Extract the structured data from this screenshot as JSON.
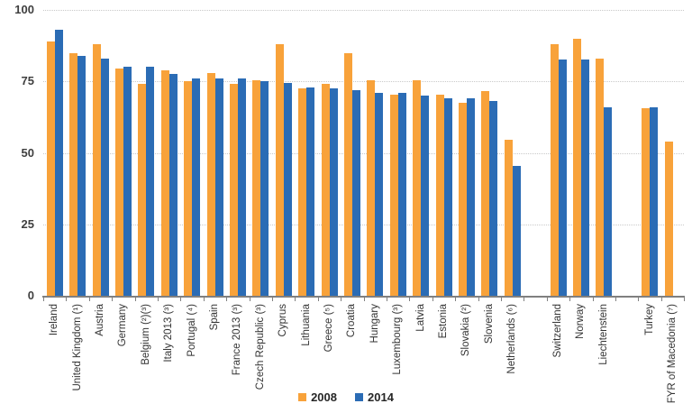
{
  "chart_data": {
    "type": "bar",
    "title": "",
    "xlabel": "",
    "ylabel": "",
    "ylim": [
      0,
      100
    ],
    "yticks": [
      0,
      25,
      50,
      75,
      100
    ],
    "grid": "horizontal-dotted",
    "legend_position": "bottom-center",
    "series": [
      {
        "name": "2008",
        "color": "#F8A23A"
      },
      {
        "name": "2014",
        "color": "#2B6CB5"
      }
    ],
    "categories": [
      {
        "label": "Ireland",
        "slot": 0,
        "values": [
          89,
          93
        ]
      },
      {
        "label": "United Kingdom (¹)",
        "slot": 1,
        "values": [
          85,
          84
        ]
      },
      {
        "label": "Austria",
        "slot": 2,
        "values": [
          88,
          83
        ]
      },
      {
        "label": "Germany",
        "slot": 3,
        "values": [
          79.5,
          80
        ]
      },
      {
        "label": "Belgium (²)(³)",
        "slot": 4,
        "values": [
          74,
          80
        ]
      },
      {
        "label": "Italy 2013 (³)",
        "slot": 5,
        "values": [
          79,
          77.5
        ]
      },
      {
        "label": "Portugal (⁴)",
        "slot": 6,
        "values": [
          75,
          76
        ]
      },
      {
        "label": "Spain",
        "slot": 7,
        "values": [
          78,
          76
        ]
      },
      {
        "label": "France 2013 (³)",
        "slot": 8,
        "values": [
          74,
          76
        ]
      },
      {
        "label": "Czech Republic (³)",
        "slot": 9,
        "values": [
          75.5,
          75
        ]
      },
      {
        "label": "Cyprus",
        "slot": 10,
        "values": [
          88,
          74.5
        ]
      },
      {
        "label": "Lithuania",
        "slot": 11,
        "values": [
          72.5,
          73
        ]
      },
      {
        "label": "Greece (⁵)",
        "slot": 12,
        "values": [
          74,
          72.5
        ]
      },
      {
        "label": "Croatia",
        "slot": 13,
        "values": [
          85,
          72
        ]
      },
      {
        "label": "Hungary",
        "slot": 14,
        "values": [
          75.5,
          71
        ]
      },
      {
        "label": "Luxembourg (³)",
        "slot": 15,
        "values": [
          70.5,
          71
        ]
      },
      {
        "label": "Latvia",
        "slot": 16,
        "values": [
          75.5,
          70
        ]
      },
      {
        "label": "Estonia",
        "slot": 17,
        "values": [
          70.5,
          69
        ]
      },
      {
        "label": "Slovakia (²)",
        "slot": 18,
        "values": [
          67.5,
          69
        ]
      },
      {
        "label": "Slovenia",
        "slot": 19,
        "values": [
          71.5,
          68
        ]
      },
      {
        "label": "Netherlands (⁶)",
        "slot": 20,
        "values": [
          54.5,
          45.5
        ]
      },
      {
        "label": "Switzerland",
        "slot": 22,
        "values": [
          88,
          82.5
        ]
      },
      {
        "label": "Norway",
        "slot": 23,
        "values": [
          90,
          82.5
        ]
      },
      {
        "label": "Liechtenstein",
        "slot": 24,
        "values": [
          83,
          66
        ]
      },
      {
        "label": "Turkey",
        "slot": 26,
        "values": [
          65.5,
          66
        ]
      },
      {
        "label": "FYR of Macedonia (⁷)",
        "slot": 27,
        "values": [
          54,
          null
        ]
      }
    ]
  }
}
